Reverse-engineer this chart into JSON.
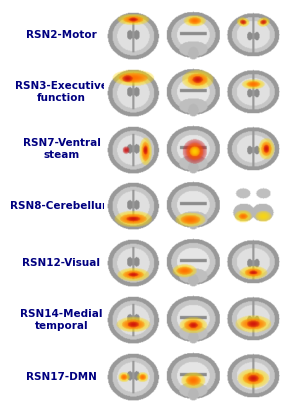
{
  "labels": [
    "RSN2-Motor",
    "RSN3-Executive\nfunction",
    "RSN7-Ventral\nsteam",
    "RSN8-Cerebellum",
    "RSN12-Visual",
    "RSN14-Medial\ntemporal",
    "RSN17-DMN"
  ],
  "label_color": "#000080",
  "background_color": "#ffffff",
  "n_rows": 7,
  "title_fontsize": 7.5,
  "brain_gray": 0.78,
  "skull_gray": 0.65,
  "wm_gray": 0.92,
  "gm_gray": 0.82
}
